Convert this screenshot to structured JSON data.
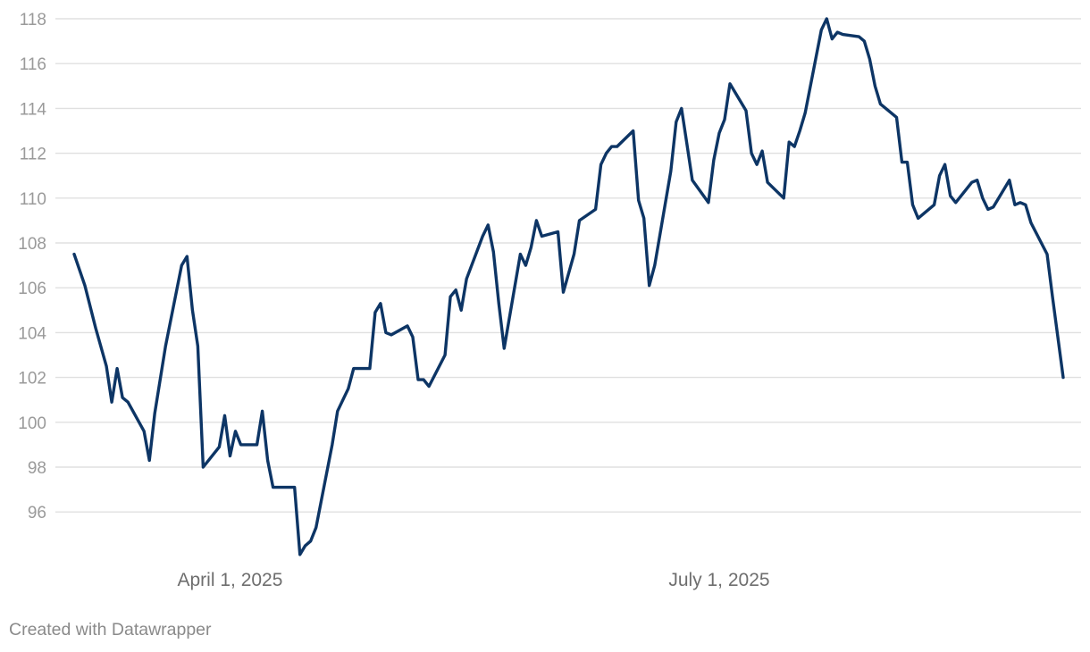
{
  "colors": {
    "line": "#0d3565",
    "grid": "#e0e0e0",
    "tick_text": "#9a9a9a",
    "date_text": "#6e6e6e",
    "credit_text": "#8a8a8a",
    "background": "#ffffff"
  },
  "footer": {
    "credit": "Created with Datawrapper"
  },
  "chart_data": {
    "type": "line",
    "title": "",
    "xlabel": "",
    "ylabel": "",
    "grid": true,
    "legend": "none",
    "ylim": [
      94,
      118
    ],
    "y_ticks": [
      96,
      98,
      100,
      102,
      104,
      106,
      108,
      110,
      112,
      114,
      116,
      118
    ],
    "x_ticks": [
      {
        "date": "2025-04-01",
        "label": "April 1, 2025"
      },
      {
        "date": "2025-07-01",
        "label": "July 1, 2025"
      }
    ],
    "xlim": [
      "2025-03-03",
      "2025-09-30"
    ],
    "series": [
      {
        "points": [
          [
            "2025-03-03",
            107.5
          ],
          [
            "2025-03-05",
            106.1
          ],
          [
            "2025-03-07",
            104.2
          ],
          [
            "2025-03-09",
            102.5
          ],
          [
            "2025-03-10",
            100.9
          ],
          [
            "2025-03-11",
            102.4
          ],
          [
            "2025-03-12",
            101.1
          ],
          [
            "2025-03-13",
            100.9
          ],
          [
            "2025-03-16",
            99.6
          ],
          [
            "2025-03-17",
            98.3
          ],
          [
            "2025-03-18",
            100.4
          ],
          [
            "2025-03-20",
            103.4
          ],
          [
            "2025-03-23",
            107.0
          ],
          [
            "2025-03-24",
            107.4
          ],
          [
            "2025-03-25",
            105.0
          ],
          [
            "2025-03-26",
            103.4
          ],
          [
            "2025-03-27",
            98.0
          ],
          [
            "2025-03-30",
            98.9
          ],
          [
            "2025-03-31",
            100.3
          ],
          [
            "2025-04-01",
            98.5
          ],
          [
            "2025-04-02",
            99.6
          ],
          [
            "2025-04-03",
            99.0
          ],
          [
            "2025-04-06",
            99.0
          ],
          [
            "2025-04-07",
            100.5
          ],
          [
            "2025-04-08",
            98.3
          ],
          [
            "2025-04-09",
            97.1
          ],
          [
            "2025-04-13",
            97.1
          ],
          [
            "2025-04-14",
            94.1
          ],
          [
            "2025-04-15",
            94.5
          ],
          [
            "2025-04-16",
            94.7
          ],
          [
            "2025-04-17",
            95.3
          ],
          [
            "2025-04-20",
            99.0
          ],
          [
            "2025-04-21",
            100.5
          ],
          [
            "2025-04-23",
            101.5
          ],
          [
            "2025-04-24",
            102.4
          ],
          [
            "2025-04-27",
            102.4
          ],
          [
            "2025-04-28",
            104.9
          ],
          [
            "2025-04-29",
            105.3
          ],
          [
            "2025-04-30",
            104.0
          ],
          [
            "2025-05-01",
            103.9
          ],
          [
            "2025-05-04",
            104.3
          ],
          [
            "2025-05-05",
            103.8
          ],
          [
            "2025-05-06",
            101.9
          ],
          [
            "2025-05-07",
            101.9
          ],
          [
            "2025-05-08",
            101.6
          ],
          [
            "2025-05-11",
            103.0
          ],
          [
            "2025-05-12",
            105.6
          ],
          [
            "2025-05-13",
            105.9
          ],
          [
            "2025-05-14",
            105.0
          ],
          [
            "2025-05-15",
            106.4
          ],
          [
            "2025-05-18",
            108.3
          ],
          [
            "2025-05-19",
            108.8
          ],
          [
            "2025-05-20",
            107.6
          ],
          [
            "2025-05-21",
            105.3
          ],
          [
            "2025-05-22",
            103.3
          ],
          [
            "2025-05-25",
            107.5
          ],
          [
            "2025-05-26",
            107.0
          ],
          [
            "2025-05-27",
            107.8
          ],
          [
            "2025-05-28",
            109.0
          ],
          [
            "2025-05-29",
            108.3
          ],
          [
            "2025-06-01",
            108.5
          ],
          [
            "2025-06-02",
            105.8
          ],
          [
            "2025-06-04",
            107.5
          ],
          [
            "2025-06-05",
            109.0
          ],
          [
            "2025-06-08",
            109.5
          ],
          [
            "2025-06-09",
            111.5
          ],
          [
            "2025-06-10",
            112.0
          ],
          [
            "2025-06-11",
            112.3
          ],
          [
            "2025-06-12",
            112.3
          ],
          [
            "2025-06-15",
            113.0
          ],
          [
            "2025-06-16",
            109.9
          ],
          [
            "2025-06-17",
            109.1
          ],
          [
            "2025-06-18",
            106.1
          ],
          [
            "2025-06-19",
            107.0
          ],
          [
            "2025-06-22",
            111.2
          ],
          [
            "2025-06-23",
            113.4
          ],
          [
            "2025-06-24",
            114.0
          ],
          [
            "2025-06-25",
            112.4
          ],
          [
            "2025-06-26",
            110.8
          ],
          [
            "2025-06-29",
            109.8
          ],
          [
            "2025-06-30",
            111.7
          ],
          [
            "2025-07-01",
            112.9
          ],
          [
            "2025-07-02",
            113.5
          ],
          [
            "2025-07-03",
            115.1
          ],
          [
            "2025-07-06",
            113.9
          ],
          [
            "2025-07-07",
            112.0
          ],
          [
            "2025-07-08",
            111.5
          ],
          [
            "2025-07-09",
            112.1
          ],
          [
            "2025-07-10",
            110.7
          ],
          [
            "2025-07-13",
            110.0
          ],
          [
            "2025-07-14",
            112.5
          ],
          [
            "2025-07-15",
            112.3
          ],
          [
            "2025-07-16",
            113.0
          ],
          [
            "2025-07-17",
            113.8
          ],
          [
            "2025-07-20",
            117.5
          ],
          [
            "2025-07-21",
            118.0
          ],
          [
            "2025-07-22",
            117.1
          ],
          [
            "2025-07-23",
            117.4
          ],
          [
            "2025-07-24",
            117.3
          ],
          [
            "2025-07-27",
            117.2
          ],
          [
            "2025-07-28",
            117.0
          ],
          [
            "2025-07-29",
            116.2
          ],
          [
            "2025-07-30",
            115.0
          ],
          [
            "2025-07-31",
            114.2
          ],
          [
            "2025-08-03",
            113.6
          ],
          [
            "2025-08-04",
            111.6
          ],
          [
            "2025-08-05",
            111.6
          ],
          [
            "2025-08-06",
            109.7
          ],
          [
            "2025-08-07",
            109.1
          ],
          [
            "2025-08-10",
            109.7
          ],
          [
            "2025-08-11",
            111.0
          ],
          [
            "2025-08-12",
            111.5
          ],
          [
            "2025-08-13",
            110.1
          ],
          [
            "2025-08-14",
            109.8
          ],
          [
            "2025-08-17",
            110.7
          ],
          [
            "2025-08-18",
            110.8
          ],
          [
            "2025-08-19",
            110.0
          ],
          [
            "2025-08-20",
            109.5
          ],
          [
            "2025-08-21",
            109.6
          ],
          [
            "2025-08-24",
            110.8
          ],
          [
            "2025-08-25",
            109.7
          ],
          [
            "2025-08-26",
            109.8
          ],
          [
            "2025-08-27",
            109.7
          ],
          [
            "2025-08-28",
            108.9
          ],
          [
            "2025-08-31",
            107.5
          ],
          [
            "2025-09-01",
            105.6
          ],
          [
            "2025-09-02",
            103.8
          ],
          [
            "2025-09-03",
            102.0
          ]
        ]
      }
    ]
  }
}
